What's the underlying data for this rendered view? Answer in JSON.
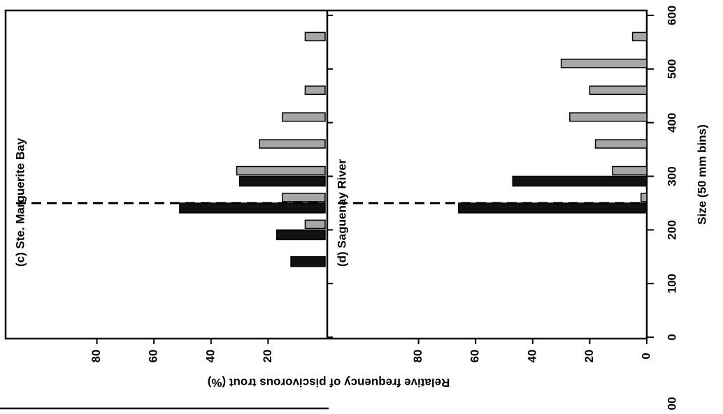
{
  "shared": {
    "ylabel": "Relative frequency of piscivorous trout (%)",
    "xlabel": "Size (50 mm bins)",
    "fragment": "00"
  },
  "chart_data": [
    {
      "type": "bar",
      "title": "(c) Ste. Marguerite Bay",
      "orientation": "horizontal",
      "x": [
        150,
        200,
        250,
        300,
        350,
        400,
        450,
        500,
        550
      ],
      "series": [
        {
          "color": "#111111",
          "values": [
            12,
            17,
            51,
            30,
            null,
            null,
            null,
            null,
            null
          ]
        },
        {
          "color": "#a6a6a6",
          "values": [
            null,
            7,
            15,
            31,
            23,
            15,
            7,
            null,
            7
          ]
        }
      ],
      "xlim": [
        0,
        600
      ],
      "ylim": [
        0,
        112
      ],
      "yticks": [
        20,
        40,
        60,
        80
      ],
      "reference_line": 250
    },
    {
      "type": "bar",
      "title": "(d) Saguenay River",
      "orientation": "horizontal",
      "x": [
        150,
        200,
        250,
        300,
        350,
        400,
        450,
        500,
        550
      ],
      "series": [
        {
          "color": "#111111",
          "values": [
            null,
            null,
            66,
            47,
            null,
            null,
            null,
            null,
            null
          ]
        },
        {
          "color": "#a6a6a6",
          "values": [
            null,
            null,
            2,
            12,
            18,
            27,
            20,
            30,
            5
          ]
        }
      ],
      "xlim": [
        0,
        600
      ],
      "xticks": [
        0,
        100,
        200,
        300,
        400,
        500,
        600
      ],
      "ylim": [
        0,
        112
      ],
      "yticks": [
        0,
        20,
        40,
        60,
        80
      ],
      "reference_line": 250
    }
  ]
}
